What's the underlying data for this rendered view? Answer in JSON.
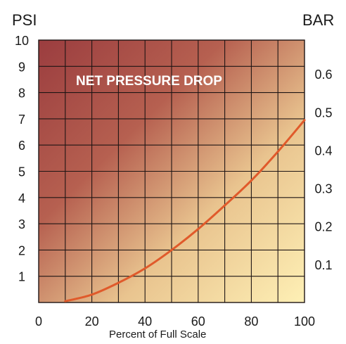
{
  "chart_data": {
    "type": "line",
    "title": "NET PRESSURE DROP",
    "xlabel": "Percent of Full Scale",
    "ylabel_left": "PSI",
    "ylabel_right": "BAR",
    "xlim": [
      0,
      100
    ],
    "ylim": [
      0,
      10
    ],
    "ylim_right": [
      0,
      0.689
    ],
    "x_ticks": [
      "0",
      "20",
      "40",
      "60",
      "80",
      "100"
    ],
    "x_tick_values": [
      0,
      20,
      40,
      60,
      80,
      100
    ],
    "y_ticks": [
      "1",
      "2",
      "3",
      "4",
      "5",
      "6",
      "7",
      "8",
      "9",
      "10"
    ],
    "y_tick_values": [
      1,
      2,
      3,
      4,
      5,
      6,
      7,
      8,
      9,
      10
    ],
    "y_right_ticks": [
      "0.1",
      "0.2",
      "0.3",
      "0.4",
      "0.5",
      "0.6"
    ],
    "y_right_tick_values": [
      0.1,
      0.2,
      0.3,
      0.4,
      0.5,
      0.6
    ],
    "grid": true,
    "grid_x_step": 10,
    "grid_y_step": 1,
    "series": [
      {
        "color": "#e05a2b",
        "x": [
          10,
          20,
          30,
          40,
          50,
          60,
          70,
          80,
          90,
          100
        ],
        "y": [
          0.05,
          0.3,
          0.75,
          1.3,
          2.0,
          2.8,
          3.7,
          4.65,
          5.75,
          6.95
        ]
      }
    ],
    "colors": {
      "bg_dark": "#9b3d3f",
      "bg_light": "#fef0b5",
      "grid": "#1e1514",
      "title_text": "#ffffff"
    }
  }
}
